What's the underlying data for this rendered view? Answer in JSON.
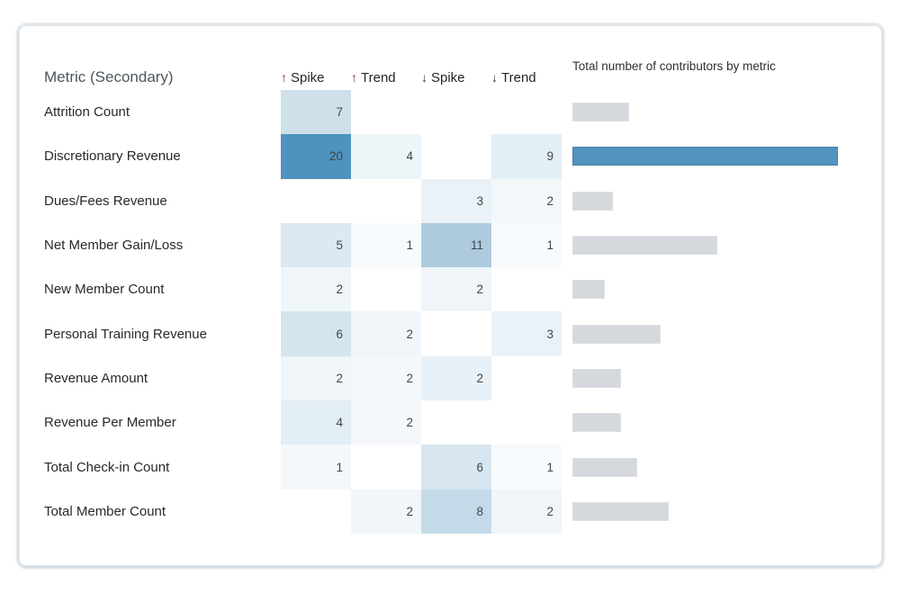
{
  "table": {
    "title": "Metric (Secondary)",
    "columns": [
      {
        "arrow": "↑",
        "dir": "up",
        "label": "Spike"
      },
      {
        "arrow": "↑",
        "dir": "up",
        "label": "Trend"
      },
      {
        "arrow": "↓",
        "dir": "down",
        "label": "Spike"
      },
      {
        "arrow": "↓",
        "dir": "down",
        "label": "Trend"
      }
    ],
    "up_arrow_color": "#872c43",
    "down_arrow_color": "#2f3a55",
    "rows": [
      {
        "metric": "Attrition Count",
        "cells": [
          {
            "value": 7,
            "color": "#cfe0eb"
          },
          null,
          null,
          null
        ]
      },
      {
        "metric": "Discretionary Revenue",
        "cells": [
          {
            "value": 20,
            "color": "#4e93bf"
          },
          {
            "value": 4,
            "color": "#eef5f9"
          },
          null,
          {
            "value": 9,
            "color": "#e4eef5"
          }
        ]
      },
      {
        "metric": "Dues/Fees Revenue",
        "cells": [
          null,
          null,
          {
            "value": 3,
            "color": "#eaf2f8"
          },
          {
            "value": 2,
            "color": "#f2f7fa"
          }
        ]
      },
      {
        "metric": "Net Member Gain/Loss",
        "cells": [
          {
            "value": 5,
            "color": "#dce9f2"
          },
          {
            "value": 1,
            "color": "#f6fafc"
          },
          {
            "value": 11,
            "color": "#aecbde"
          },
          {
            "value": 1,
            "color": "#f6fafc"
          }
        ]
      },
      {
        "metric": "New Member Count",
        "cells": [
          {
            "value": 2,
            "color": "#eff5f9"
          },
          null,
          {
            "value": 2,
            "color": "#eff5f9"
          },
          null
        ]
      },
      {
        "metric": "Personal Training Revenue",
        "cells": [
          {
            "value": 6,
            "color": "#d5e5ef"
          },
          {
            "value": 2,
            "color": "#f0f6fa"
          },
          null,
          {
            "value": 3,
            "color": "#eaf2f8"
          }
        ]
      },
      {
        "metric": "Revenue Amount",
        "cells": [
          {
            "value": 2,
            "color": "#eff5f9"
          },
          {
            "value": 2,
            "color": "#f4f8fb"
          },
          {
            "value": 2,
            "color": "#e8f1f7"
          },
          null
        ]
      },
      {
        "metric": "Revenue Per Member",
        "cells": [
          {
            "value": 4,
            "color": "#e3edf4"
          },
          {
            "value": 2,
            "color": "#f4f8fb"
          },
          null,
          null
        ]
      },
      {
        "metric": "Total Check-in Count",
        "cells": [
          {
            "value": 1,
            "color": "#f4f8fb"
          },
          null,
          {
            "value": 6,
            "color": "#d7e6f0"
          },
          {
            "value": 1,
            "color": "#f7fafc"
          }
        ]
      },
      {
        "metric": "Total Member Count",
        "cells": [
          null,
          {
            "value": 2,
            "color": "#f1f6fa"
          },
          {
            "value": 8,
            "color": "#c5dae8"
          },
          {
            "value": 2,
            "color": "#eff5f9"
          }
        ]
      }
    ]
  },
  "bar_chart": {
    "title": "Total number of contributors by metric",
    "max_value": 33,
    "highlight_index": 1,
    "bar_color_default": "#d5d9dd",
    "bar_color_highlight": "#5294be",
    "values": [
      7,
      33,
      5,
      18,
      4,
      11,
      6,
      6,
      8,
      12
    ]
  },
  "chart_data": [
    {
      "type": "heatmap",
      "title": "Metric (Secondary)",
      "rows": [
        "Attrition Count",
        "Discretionary Revenue",
        "Dues/Fees Revenue",
        "Net Member Gain/Loss",
        "New Member Count",
        "Personal Training Revenue",
        "Revenue Amount",
        "Revenue Per Member",
        "Total Check-in Count",
        "Total Member Count"
      ],
      "columns": [
        "↑ Spike",
        "↑ Trend",
        "↓ Spike",
        "↓ Trend"
      ],
      "values": [
        [
          7,
          null,
          null,
          null
        ],
        [
          20,
          4,
          null,
          9
        ],
        [
          null,
          null,
          3,
          2
        ],
        [
          5,
          1,
          11,
          1
        ],
        [
          2,
          null,
          2,
          null
        ],
        [
          6,
          2,
          null,
          3
        ],
        [
          2,
          2,
          2,
          null
        ],
        [
          4,
          2,
          null,
          null
        ],
        [
          1,
          null,
          6,
          1
        ],
        [
          null,
          2,
          8,
          2
        ]
      ],
      "color_scale": [
        "#f7fafc",
        "#4e93bf"
      ],
      "grid": false,
      "legend": false
    },
    {
      "type": "bar",
      "orientation": "horizontal",
      "title": "Total number of contributors by metric",
      "categories": [
        "Attrition Count",
        "Discretionary Revenue",
        "Dues/Fees Revenue",
        "Net Member Gain/Loss",
        "New Member Count",
        "Personal Training Revenue",
        "Revenue Amount",
        "Revenue Per Member",
        "Total Check-in Count",
        "Total Member Count"
      ],
      "values": [
        7,
        33,
        5,
        18,
        4,
        11,
        6,
        6,
        8,
        12
      ],
      "xlim": [
        0,
        33
      ],
      "highlight_category": "Discretionary Revenue",
      "axis_labels_shown": false,
      "legend": false
    }
  ]
}
